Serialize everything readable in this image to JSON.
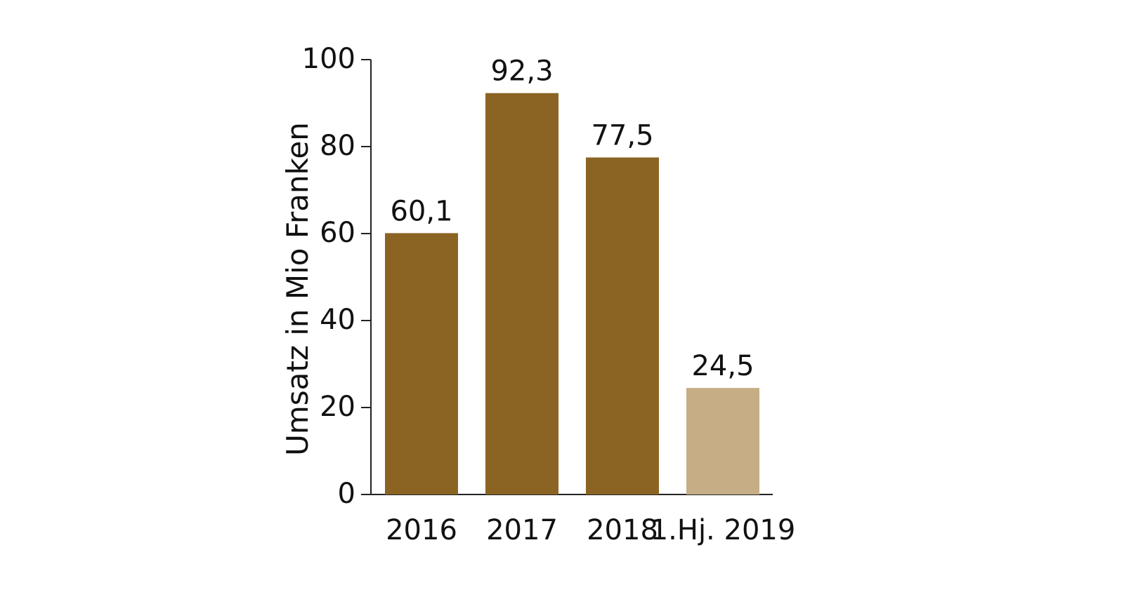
{
  "chart_data": {
    "type": "bar",
    "categories": [
      "2016",
      "2017",
      "2018",
      "1.Hj. 2019"
    ],
    "values": [
      60.1,
      92.3,
      77.5,
      24.5
    ],
    "value_labels": [
      "60,1",
      "92,3",
      "77,5",
      "24,5"
    ],
    "bar_colors": [
      "#8B6424",
      "#8B6424",
      "#8B6424",
      "#C6AD86"
    ],
    "title": "",
    "xlabel": "",
    "ylabel": "Umsatz in Mio Franken",
    "ylim": [
      0,
      100
    ],
    "yticks": [
      0,
      20,
      40,
      60,
      80,
      100
    ],
    "ytick_labels": [
      "0",
      "20",
      "40",
      "60",
      "80",
      "100"
    ],
    "grid": false,
    "legend": "none"
  }
}
